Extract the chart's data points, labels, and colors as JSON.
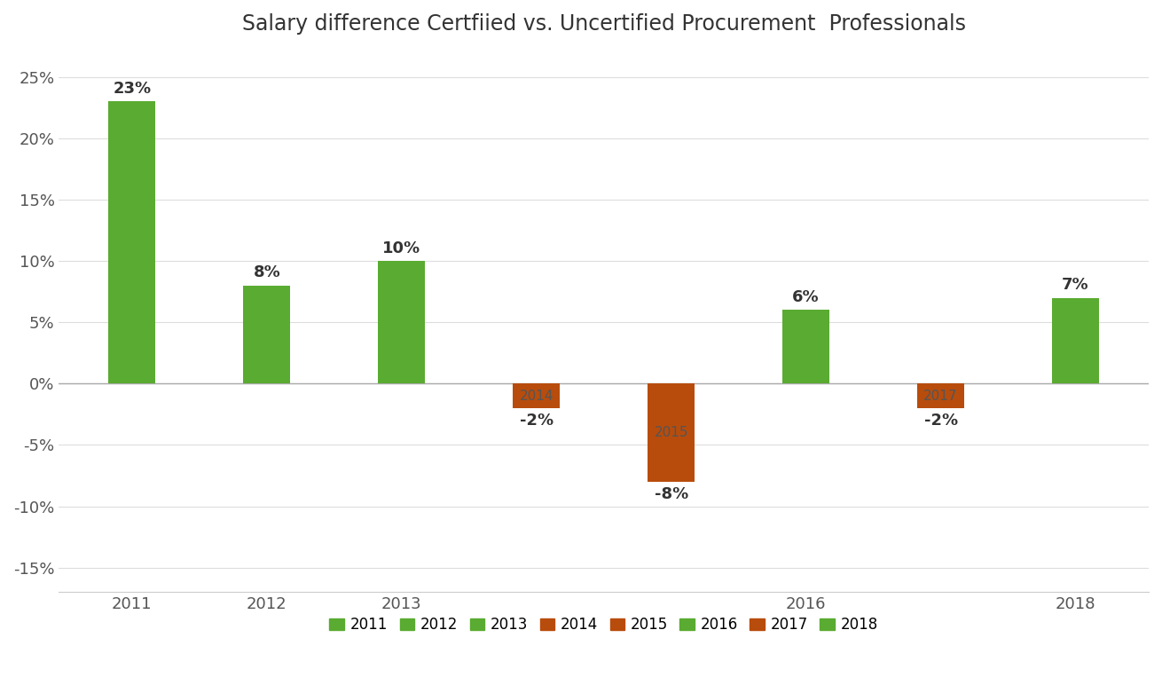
{
  "title": "Salary difference Certfiied vs. Uncertified Procurement  Professionals",
  "years": [
    "2011",
    "2012",
    "2013",
    "2014",
    "2015",
    "2016",
    "2017",
    "2018"
  ],
  "values": [
    23,
    8,
    10,
    -2,
    -8,
    6,
    -2,
    7
  ],
  "bar_colors": [
    "#5aab31",
    "#5aab31",
    "#5aab31",
    "#b84c0c",
    "#b84c0c",
    "#5aab31",
    "#b84c0c",
    "#5aab31"
  ],
  "legend_colors": {
    "2011": "#5aab31",
    "2012": "#5aab31",
    "2013": "#5aab31",
    "2014": "#b84c0c",
    "2015": "#b84c0c",
    "2016": "#5aab31",
    "2017": "#b84c0c",
    "2018": "#5aab31"
  },
  "ylim": [
    -17,
    27
  ],
  "yticks": [
    -15,
    -10,
    -5,
    0,
    5,
    10,
    15,
    20,
    25
  ],
  "ytick_labels": [
    "-15%",
    "-10%",
    "-5%",
    "0%",
    "5%",
    "10%",
    "15%",
    "20%",
    "25%"
  ],
  "background_color": "#ffffff",
  "bar_width": 0.35
}
